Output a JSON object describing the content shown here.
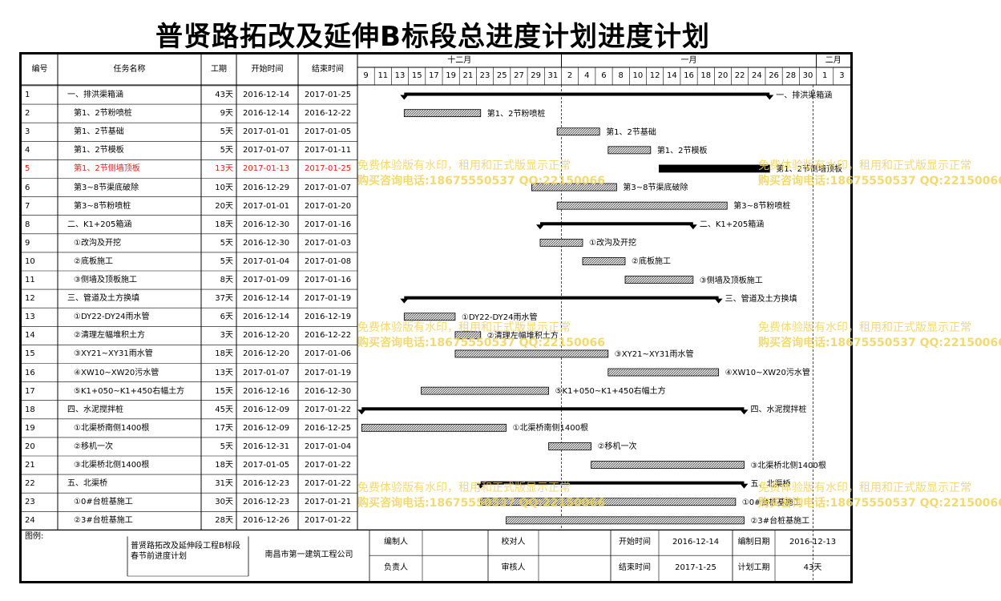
{
  "title": "普贤路拓改及延伸B标段总进度计划进度计划",
  "headers": {
    "id": "编号",
    "name": "任务名称",
    "duration": "工期",
    "start": "开始时间",
    "end": "结束时间"
  },
  "months": [
    "十二月",
    "一月",
    "二月"
  ],
  "days": [
    "9",
    "11",
    "13",
    "15",
    "17",
    "19",
    "21",
    "23",
    "25",
    "27",
    "29",
    "31",
    "2",
    "4",
    "6",
    "8",
    "10",
    "12",
    "14",
    "16",
    "18",
    "20",
    "22",
    "24",
    "26",
    "28",
    "30",
    "1",
    "3"
  ],
  "tasks": [
    {
      "id": "1",
      "name": "一、排洪渠箱涵",
      "duration": "43天",
      "start": "2016-12-14",
      "end": "2017-01-25",
      "summary": true,
      "label": "一、排洪渠箱涵",
      "s": 0.5,
      "e": 43.5
    },
    {
      "id": "2",
      "name": "第1、2节粉喷桩",
      "duration": "9天",
      "start": "2016-12-14",
      "end": "2016-12-22",
      "label": "第1、2节粉喷桩",
      "s": 0.5,
      "e": 9.5
    },
    {
      "id": "3",
      "name": "第1、2节基础",
      "duration": "5天",
      "start": "2017-01-01",
      "end": "2017-01-05",
      "label": "第1、2节基础",
      "s": 18.5,
      "e": 23.5
    },
    {
      "id": "4",
      "name": "第1、2节模板",
      "duration": "5天",
      "start": "2017-01-07",
      "end": "2017-01-11",
      "label": "第1、2节模板",
      "s": 24.5,
      "e": 29.5
    },
    {
      "id": "5",
      "name": "第1、2节侧墙顶板",
      "duration": "13天",
      "start": "2017-01-13",
      "end": "2017-01-25",
      "critical": true,
      "label": "第1、2节侧墙顶板",
      "s": 30.5,
      "e": 43.5
    },
    {
      "id": "6",
      "name": "第3~8节渠底破除",
      "duration": "10天",
      "start": "2016-12-29",
      "end": "2017-01-07",
      "label": "第3~8节渠底破除",
      "s": 15.5,
      "e": 25.5
    },
    {
      "id": "7",
      "name": "第3~8节粉喷桩",
      "duration": "20天",
      "start": "2017-01-01",
      "end": "2017-01-20",
      "label": "第3~8节粉喷桩",
      "s": 18.5,
      "e": 38.5
    },
    {
      "id": "8",
      "name": "二、K1+205箱涵",
      "duration": "18天",
      "start": "2016-12-30",
      "end": "2017-01-16",
      "summary": true,
      "label": "二、K1+205箱涵",
      "s": 16.5,
      "e": 34.5
    },
    {
      "id": "9",
      "name": "①改沟及开挖",
      "duration": "5天",
      "start": "2016-12-30",
      "end": "2017-01-03",
      "label": "①改沟及开挖",
      "s": 16.5,
      "e": 21.5
    },
    {
      "id": "10",
      "name": "②底板施工",
      "duration": "5天",
      "start": "2017-01-04",
      "end": "2017-01-08",
      "label": "②底板施工",
      "s": 21.5,
      "e": 26.5
    },
    {
      "id": "11",
      "name": "③侧墙及顶板施工",
      "duration": "8天",
      "start": "2017-01-09",
      "end": "2017-01-16",
      "label": "③侧墙及顶板施工",
      "s": 26.5,
      "e": 34.5
    },
    {
      "id": "12",
      "name": "三、管道及土方换填",
      "duration": "37天",
      "start": "2016-12-14",
      "end": "2017-01-19",
      "summary": true,
      "label": "三、管道及土方换填",
      "s": 0.5,
      "e": 37.5
    },
    {
      "id": "13",
      "name": "①DY22-DY24雨水管",
      "duration": "6天",
      "start": "2016-12-14",
      "end": "2016-12-19",
      "label": "①DY22-DY24雨水管",
      "s": 0.5,
      "e": 6.5
    },
    {
      "id": "14",
      "name": "②清理左幅堆积土方",
      "duration": "3天",
      "start": "2016-12-20",
      "end": "2016-12-22",
      "label": "②清理左幅堆积土方",
      "s": 6.5,
      "e": 9.5
    },
    {
      "id": "15",
      "name": "③XY21~XY31雨水管",
      "duration": "18天",
      "start": "2016-12-20",
      "end": "2017-01-06",
      "label": "③XY21~XY31雨水管",
      "s": 6.5,
      "e": 24.5
    },
    {
      "id": "16",
      "name": "④XW10~XW20污水管",
      "duration": "13天",
      "start": "2017-01-07",
      "end": "2017-01-19",
      "label": "④XW10~XW20污水管",
      "s": 24.5,
      "e": 37.5
    },
    {
      "id": "17",
      "name": "⑤K1+050~K1+450右幅土方",
      "duration": "15天",
      "start": "2016-12-16",
      "end": "2016-12-30",
      "label": "⑤K1+050~K1+450右幅土方",
      "s": 2.5,
      "e": 17.5
    },
    {
      "id": "18",
      "name": "四、水泥搅拌桩",
      "duration": "45天",
      "start": "2016-12-09",
      "end": "2017-01-22",
      "summary": true,
      "label": "四、水泥搅拌桩",
      "s": -4.5,
      "e": 40.5
    },
    {
      "id": "19",
      "name": "①北渠桥南侧1400根",
      "duration": "17天",
      "start": "2016-12-09",
      "end": "2016-12-25",
      "label": "①北渠桥南侧1400根",
      "s": -4.5,
      "e": 12.5
    },
    {
      "id": "20",
      "name": "②移机一次",
      "duration": "5天",
      "start": "2016-12-31",
      "end": "2017-01-04",
      "label": "②移机一次",
      "s": 17.5,
      "e": 22.5
    },
    {
      "id": "21",
      "name": "③北渠桥北侧1400根",
      "duration": "18天",
      "start": "2017-01-05",
      "end": "2017-01-22",
      "label": "③北渠桥北侧1400根",
      "s": 22.5,
      "e": 40.5
    },
    {
      "id": "22",
      "name": "五、北渠桥",
      "duration": "31天",
      "start": "2016-12-23",
      "end": "2017-01-22",
      "summary": true,
      "label": "五、北渠桥",
      "s": 9.5,
      "e": 40.5
    },
    {
      "id": "23",
      "name": "①0#台桩基施工",
      "duration": "30天",
      "start": "2016-12-23",
      "end": "2017-01-21",
      "label": "①0#台桩基施工",
      "s": 9.5,
      "e": 39.5
    },
    {
      "id": "24",
      "name": "②3#台桩基施工",
      "duration": "28天",
      "start": "2016-12-26",
      "end": "2017-01-22",
      "label": "②3#台桩基施工",
      "s": 12.5,
      "e": 40.5
    }
  ],
  "footer": {
    "legend": "图例:",
    "project": "普贤路拓改及延伸段工程B标段春节前进度计划",
    "company": "南昌市第一建筑工程公司",
    "compiler_label": "编制人",
    "checker_label": "校对人",
    "start_label": "开始时间",
    "start_value": "2016-12-14",
    "date_label": "编制日期",
    "date_value": "2016-12-13",
    "manager_label": "负责人",
    "reviewer_label": "审核人",
    "end_label": "结束时间",
    "end_value": "2017-1-25",
    "plan_label": "计划工期",
    "plan_value": "43天"
  },
  "watermark": {
    "line1": "免费体验版有水印，租用和正式版显示正常",
    "line2": "购买咨询电话:18675550537 QQ:22150066"
  },
  "colors": {
    "critical": "#e21b1b",
    "watermark": "#f0d25a",
    "bar_fill": "#bdbdbd",
    "summary": "#000000"
  }
}
